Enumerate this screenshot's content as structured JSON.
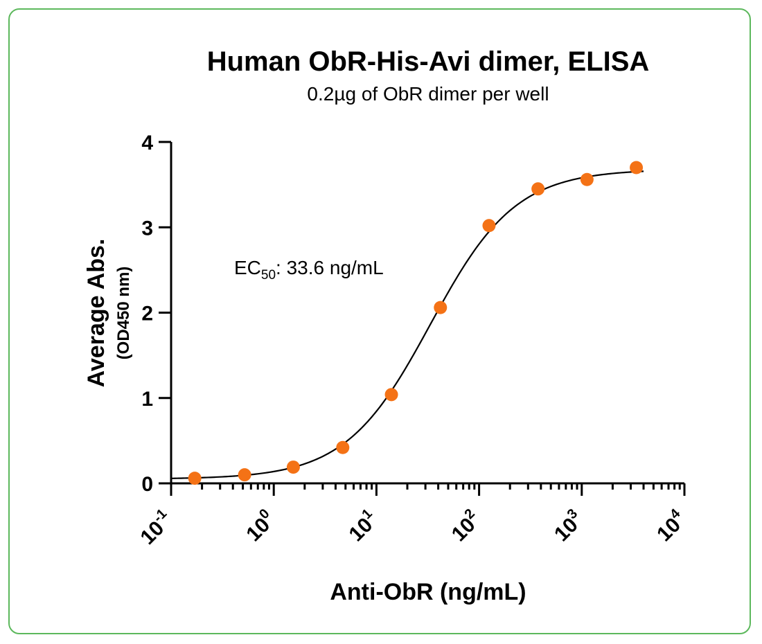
{
  "chart_data": {
    "type": "scatter",
    "title": "Human ObR-His-Avi dimer, ELISA",
    "subtitle": "0.2µg of ObR dimer per well",
    "xlabel": "Anti-ObR  (ng/mL)",
    "ylabel": "Average Abs.",
    "ylabel_sub": "(OD450 nm)",
    "x_scale": "log",
    "xlim": [
      0.1,
      10000
    ],
    "ylim": [
      0,
      4
    ],
    "x_ticks": [
      {
        "base": "10",
        "exp": "-1",
        "value": 0.1
      },
      {
        "base": "10",
        "exp": "0",
        "value": 1
      },
      {
        "base": "10",
        "exp": "1",
        "value": 10
      },
      {
        "base": "10",
        "exp": "2",
        "value": 100
      },
      {
        "base": "10",
        "exp": "3",
        "value": 1000
      },
      {
        "base": "10",
        "exp": "4",
        "value": 10000
      }
    ],
    "y_ticks": [
      "0",
      "1",
      "2",
      "3",
      "4"
    ],
    "series": [
      {
        "x": [
          0.17,
          0.52,
          1.55,
          4.7,
          14,
          42,
          125,
          375,
          1125,
          3400
        ],
        "y": [
          0.06,
          0.1,
          0.19,
          0.42,
          1.04,
          2.06,
          3.02,
          3.45,
          3.56,
          3.7
        ],
        "color": "#f47216"
      }
    ],
    "fit_curve": {
      "model": "4PL",
      "bottom": 0.05,
      "top": 3.68,
      "ec50": 33.6,
      "hill": 1.05,
      "color": "#000000"
    },
    "annotation": {
      "prefix": "EC",
      "subscript": "50",
      "suffix": ": 33.6 ng/mL"
    },
    "grid": false,
    "legend": "none"
  },
  "colors": {
    "frame_border": "#5cb85c",
    "marker": "#f47216"
  }
}
